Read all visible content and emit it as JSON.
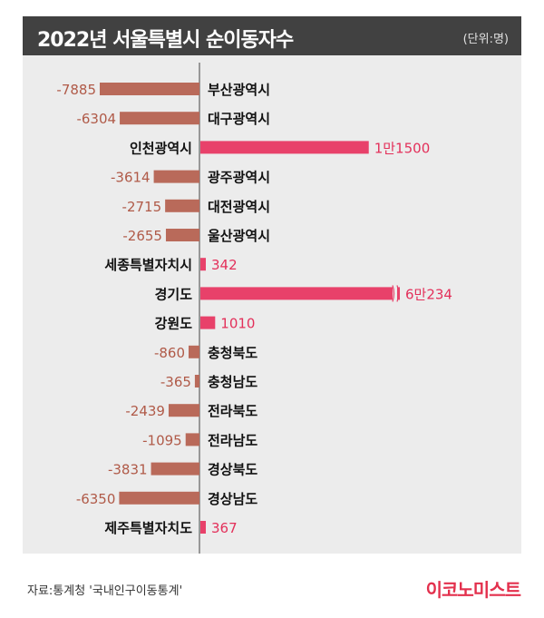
{
  "header": {
    "title": "2022년 서울특별시 순이동자수",
    "unit": "(단위:명)"
  },
  "footer": {
    "source": "자료:통계청 '국내인구이동통계'",
    "brand": "이코노미스트"
  },
  "colors": {
    "negative": "#b96a5a",
    "positive": "#e8416a",
    "negative_text": "#b05a48",
    "positive_text": "#e3305a",
    "title_bg": "#414141",
    "panel_bg": "#ececec"
  },
  "chart_data": {
    "type": "bar",
    "orientation": "horizontal",
    "categories": [
      "부산광역시",
      "대구광역시",
      "인천광역시",
      "광주광역시",
      "대전광역시",
      "울산광역시",
      "세종특별자치시",
      "경기도",
      "강원도",
      "충청북도",
      "충청남도",
      "전라북도",
      "전라남도",
      "경상북도",
      "경상남도",
      "제주특별자치도"
    ],
    "values": [
      -7885,
      -6304,
      11500,
      -3614,
      -2715,
      -2655,
      342,
      60234,
      1010,
      -860,
      -365,
      -2439,
      -1095,
      -3831,
      -6350,
      367
    ],
    "value_labels": [
      "-7885",
      "-6304",
      "1만1500",
      "-3614",
      "-2715",
      "-2655",
      "342",
      "6만234",
      "1010",
      "-860",
      "-365",
      "-2439",
      "-1095",
      "-3831",
      "-6350",
      "367"
    ],
    "axis_break": {
      "category": "경기도"
    },
    "grid": false,
    "legend": "none"
  }
}
